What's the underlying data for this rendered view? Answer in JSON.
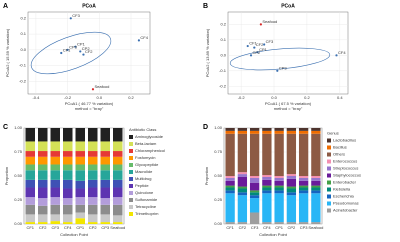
{
  "chart_data": [
    {
      "type": "scatter",
      "panel": "A",
      "title": "PCoA",
      "subtitle": "method = \"bray\"",
      "x_label": "PCoA1 ( 46.77 % variation)",
      "y_label": "PCoA2 ( 15.59 % variation)",
      "labels": [
        "CF3",
        "CF4",
        "CP1",
        "CP2",
        "CP3",
        "CF1",
        "CF2",
        "Seafood"
      ],
      "x": [
        -0.18,
        0.25,
        -0.15,
        -0.12,
        -0.2,
        -0.24,
        -0.1,
        -0.04
      ],
      "values": [
        0.2,
        0.06,
        0.02,
        -0.01,
        0.0,
        -0.02,
        -0.03,
        -0.25
      ],
      "colors": [
        "#3a6fb0",
        "#3a6fb0",
        "#3a6fb0",
        "#3a6fb0",
        "#3a6fb0",
        "#3a6fb0",
        "#3a6fb0",
        "#d62728"
      ],
      "xlim": [
        -0.45,
        0.32
      ],
      "ylim": [
        -0.28,
        0.24
      ],
      "xticks": [
        -0.4,
        -0.2,
        {
          "value": 0,
          "label": "0.0"
        },
        0.2
      ],
      "yticks": [
        0.2,
        0.1,
        {
          "value": 0,
          "label": "0.0"
        },
        -0.1,
        -0.2
      ],
      "grid": true
    },
    {
      "type": "scatter",
      "panel": "B",
      "title": "PCoA",
      "subtitle": "method = \"bray\"",
      "x_label": "PCoA1 ( 67.5 % variation)",
      "y_label": "PCoA2 ( 13.89 % variation)",
      "labels": [
        "Seafood",
        "CF1",
        "CF2",
        "CF3",
        "CP1",
        "CP2",
        "CF4",
        "CP3"
      ],
      "x": [
        -0.08,
        -0.16,
        -0.12,
        -0.06,
        -0.1,
        -0.14,
        0.38,
        0.02
      ],
      "values": [
        0.2,
        0.06,
        0.05,
        0.07,
        0.02,
        0.0,
        0.0,
        -0.1
      ],
      "colors": [
        "#d62728",
        "#3a6fb0",
        "#3a6fb0",
        "#3a6fb0",
        "#3a6fb0",
        "#3a6fb0",
        "#3a6fb0",
        "#3a6fb0"
      ],
      "xlim": [
        -0.28,
        0.45
      ],
      "ylim": [
        -0.25,
        0.28
      ],
      "xticks": [
        -0.2,
        {
          "value": 0,
          "label": "0.0"
        },
        0.2,
        0.4
      ],
      "yticks": [
        0.2,
        0.1,
        {
          "value": 0,
          "label": "0.0"
        },
        -0.1,
        -0.2
      ],
      "grid": true
    },
    {
      "type": "stacked_bar",
      "panel": "C",
      "x_label": "Collection Point",
      "y_label": "Proportion",
      "legend_title": "Antibiotic Class",
      "categories": [
        "CF1",
        "CF2",
        "CF3",
        "CF4",
        "CP1",
        "CP2",
        "CP3",
        "Seafood"
      ],
      "series": [
        {
          "name": "Trimethoprim",
          "color": "#f2e600",
          "values": [
            0.02,
            0.02,
            0.03,
            0.02,
            0.06,
            0.02,
            0.02,
            0.02
          ]
        },
        {
          "name": "Tetracycline",
          "color": "#c8c8c8",
          "values": [
            0.08,
            0.08,
            0.07,
            0.08,
            0.06,
            0.08,
            0.08,
            0.07
          ]
        },
        {
          "name": "Sulfonamide",
          "color": "#8c8c8c",
          "values": [
            0.1,
            0.09,
            0.1,
            0.1,
            0.08,
            0.1,
            0.1,
            0.11
          ]
        },
        {
          "name": "Quinolone",
          "color": "#b39ddb",
          "values": [
            0.08,
            0.08,
            0.08,
            0.07,
            0.08,
            0.08,
            0.07,
            0.08
          ]
        },
        {
          "name": "Peptide",
          "color": "#5e35b1",
          "values": [
            0.1,
            0.11,
            0.1,
            0.1,
            0.09,
            0.1,
            0.11,
            0.1
          ]
        },
        {
          "name": "Multidrug",
          "color": "#3f51b5",
          "values": [
            0.08,
            0.08,
            0.08,
            0.09,
            0.08,
            0.08,
            0.08,
            0.08
          ]
        },
        {
          "name": "Macrolide",
          "color": "#26a69a",
          "values": [
            0.1,
            0.1,
            0.1,
            0.1,
            0.11,
            0.1,
            0.1,
            0.1
          ]
        },
        {
          "name": "Glycopeptide",
          "color": "#66bb6a",
          "values": [
            0.06,
            0.06,
            0.06,
            0.06,
            0.06,
            0.06,
            0.06,
            0.06
          ]
        },
        {
          "name": "Fosfomycin",
          "color": "#ff9800",
          "values": [
            0.08,
            0.08,
            0.08,
            0.08,
            0.08,
            0.08,
            0.08,
            0.08
          ]
        },
        {
          "name": "Chloramphenicol",
          "color": "#e53935",
          "values": [
            0.06,
            0.06,
            0.06,
            0.06,
            0.06,
            0.06,
            0.06,
            0.06
          ]
        },
        {
          "name": "Beta-lactam",
          "color": "#d4e157",
          "values": [
            0.1,
            0.1,
            0.1,
            0.1,
            0.1,
            0.1,
            0.1,
            0.1
          ]
        },
        {
          "name": "Aminoglycoside",
          "color": "#212121",
          "values": [
            0.14,
            0.14,
            0.14,
            0.14,
            0.14,
            0.14,
            0.14,
            0.14
          ]
        }
      ],
      "ylim": [
        0,
        1
      ],
      "yticks": [
        {
          "value": 0,
          "label": "0.00"
        },
        {
          "value": 0.25,
          "label": "0.25"
        },
        {
          "value": 0.5,
          "label": "0.50"
        },
        {
          "value": 0.75,
          "label": "0.75"
        },
        {
          "value": 1,
          "label": "1.00"
        }
      ],
      "grid": true
    },
    {
      "type": "stacked_bar",
      "panel": "D",
      "x_label": "Collection Point",
      "y_label": "Proportion",
      "legend_title": "Genus",
      "categories": [
        "CF1",
        "CF2",
        "CF3",
        "CF4",
        "CP1",
        "CP2",
        "CP3",
        "Seafood"
      ],
      "series": [
        {
          "name": "Acinetobacter",
          "color": "#9e9e9e",
          "values": [
            0.02,
            0.02,
            0.12,
            0.02,
            0.02,
            0.02,
            0.02,
            0.02
          ]
        },
        {
          "name": "Pseudomonas",
          "color": "#29b6f6",
          "values": [
            0.3,
            0.28,
            0.15,
            0.3,
            0.3,
            0.28,
            0.3,
            0.3
          ]
        },
        {
          "name": "Escherichia",
          "color": "#1565c0",
          "values": [
            0.03,
            0.03,
            0.03,
            0.03,
            0.03,
            0.03,
            0.03,
            0.03
          ]
        },
        {
          "name": "Klebsiella",
          "color": "#00897b",
          "values": [
            0.03,
            0.04,
            0.03,
            0.03,
            0.03,
            0.04,
            0.03,
            0.03
          ]
        },
        {
          "name": "Enterobacter",
          "color": "#43a047",
          "values": [
            0.02,
            0.02,
            0.02,
            0.02,
            0.02,
            0.02,
            0.02,
            0.02
          ]
        },
        {
          "name": "Staphylococcus",
          "color": "#6a1b9a",
          "values": [
            0.05,
            0.1,
            0.08,
            0.06,
            0.05,
            0.08,
            0.05,
            0.05
          ]
        },
        {
          "name": "Streptococcus",
          "color": "#9575cd",
          "values": [
            0.03,
            0.03,
            0.05,
            0.03,
            0.03,
            0.03,
            0.03,
            0.03
          ]
        },
        {
          "name": "Enterococcus",
          "color": "#f48fb1",
          "values": [
            0.02,
            0.02,
            0.02,
            0.02,
            0.02,
            0.02,
            0.02,
            0.02
          ]
        },
        {
          "name": "Others",
          "color": "#8d5a44",
          "values": [
            0.44,
            0.4,
            0.44,
            0.43,
            0.44,
            0.42,
            0.44,
            0.44
          ]
        },
        {
          "name": "Bacillus",
          "color": "#ef6c00",
          "values": [
            0.03,
            0.03,
            0.03,
            0.03,
            0.03,
            0.03,
            0.03,
            0.03
          ]
        },
        {
          "name": "Lactobacillus",
          "color": "#4e342e",
          "values": [
            0.03,
            0.03,
            0.03,
            0.03,
            0.03,
            0.03,
            0.03,
            0.03
          ]
        }
      ],
      "ylim": [
        0,
        1
      ],
      "yticks": [
        {
          "value": 0,
          "label": "0.00"
        },
        {
          "value": 0.25,
          "label": "0.25"
        },
        {
          "value": 0.5,
          "label": "0.50"
        },
        {
          "value": 0.75,
          "label": "0.75"
        },
        {
          "value": 1,
          "label": "1.00"
        }
      ],
      "grid": true
    }
  ]
}
